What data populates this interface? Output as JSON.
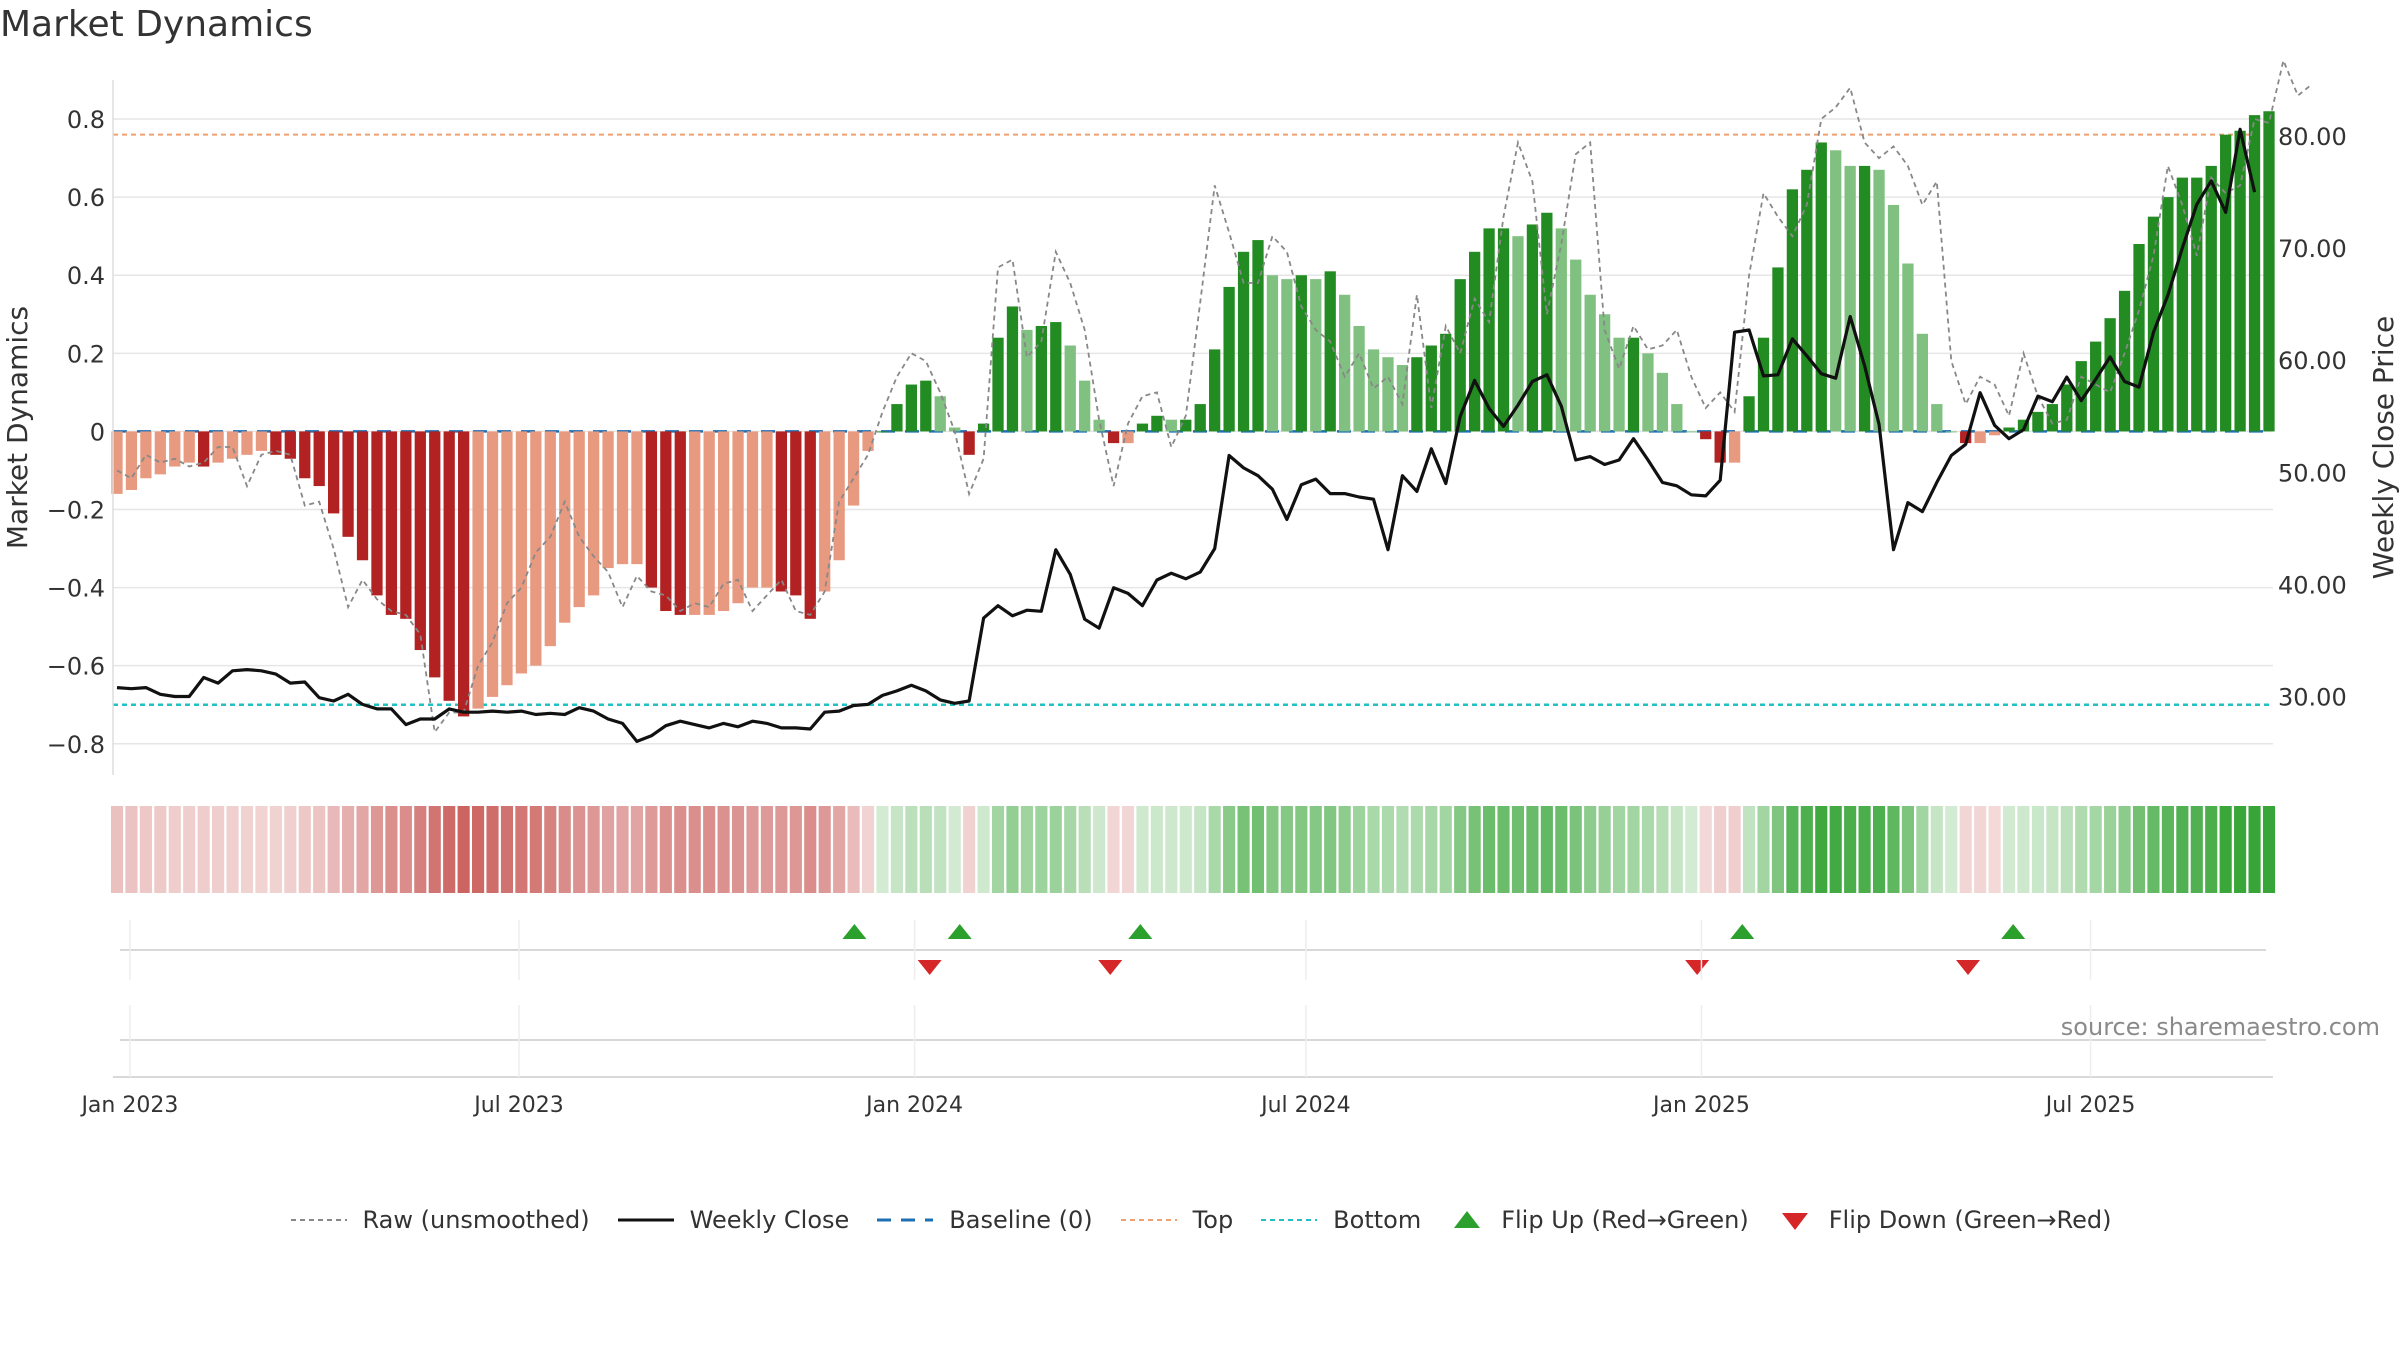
{
  "title": "Market Dynamics",
  "source": "source: sharemaestro.com",
  "colors": {
    "pos_strong": "#228b22",
    "pos_weak": "#80c080",
    "neg_strong": "#b22222",
    "neg_weak": "#e89a80",
    "close": "#111111",
    "raw": "#888888",
    "baseline": "#1f6fb4",
    "top": "#f0a070",
    "bottom": "#22c0c0",
    "flip_up": "#2ca02c",
    "flip_down": "#d62728"
  },
  "chart_data": {
    "type": "bar",
    "ylabel": "Market Dynamics",
    "y2label": "Weekly Close Price",
    "ylim": [
      -0.88,
      0.9
    ],
    "y2lim": [
      23.0,
      85.0
    ],
    "yticks": [
      "0.8",
      "0.6",
      "0.4",
      "0.2",
      "0",
      "−0.2",
      "−0.4",
      "−0.6",
      "−0.8"
    ],
    "y2ticks": [
      "80.00",
      "70.00",
      "60.00",
      "50.00",
      "40.00",
      "30.00"
    ],
    "x_start": "2022-12-26",
    "x_end": "2025-09-22",
    "xticks": [
      "Jan 2023",
      "Jul 2023",
      "Jan 2024",
      "Jul 2024",
      "Jan 2025",
      "Jul 2025"
    ],
    "top_level": 0.76,
    "bottom_level": -0.7,
    "baseline_level": 0,
    "series": [
      {
        "name": "Market Dynamics",
        "values": [
          -0.16,
          -0.15,
          -0.12,
          -0.11,
          -0.09,
          -0.08,
          -0.09,
          -0.08,
          -0.07,
          -0.06,
          -0.05,
          -0.06,
          -0.07,
          -0.12,
          -0.14,
          -0.21,
          -0.27,
          -0.33,
          -0.42,
          -0.47,
          -0.48,
          -0.56,
          -0.63,
          -0.69,
          -0.73,
          -0.71,
          -0.68,
          -0.65,
          -0.62,
          -0.6,
          -0.55,
          -0.49,
          -0.45,
          -0.42,
          -0.35,
          -0.34,
          -0.34,
          -0.4,
          -0.46,
          -0.47,
          -0.47,
          -0.47,
          -0.46,
          -0.44,
          -0.4,
          -0.4,
          -0.41,
          -0.42,
          -0.48,
          -0.41,
          -0.33,
          -0.19,
          -0.05,
          0.0,
          0.07,
          0.12,
          0.13,
          0.09,
          0.01,
          -0.06,
          0.02,
          0.24,
          0.32,
          0.26,
          0.27,
          0.28,
          0.22,
          0.13,
          0.03,
          -0.03,
          -0.03,
          0.02,
          0.04,
          0.03,
          0.03,
          0.07,
          0.21,
          0.37,
          0.46,
          0.49,
          0.4,
          0.39,
          0.4,
          0.39,
          0.41,
          0.35,
          0.27,
          0.21,
          0.19,
          0.17,
          0.19,
          0.22,
          0.25,
          0.39,
          0.46,
          0.52,
          0.52,
          0.5,
          0.53,
          0.56,
          0.52,
          0.44,
          0.35,
          0.3,
          0.24,
          0.24,
          0.2,
          0.15,
          0.07,
          0.0,
          -0.02,
          -0.08,
          -0.08,
          0.09,
          0.24,
          0.42,
          0.62,
          0.67,
          0.74,
          0.72,
          0.68,
          0.68,
          0.67,
          0.58,
          0.43,
          0.25,
          0.07,
          0.0,
          -0.03,
          -0.03,
          -0.01,
          0.01,
          0.03,
          0.05,
          0.07,
          0.12,
          0.18,
          0.23,
          0.29,
          0.36,
          0.48,
          0.55,
          0.6,
          0.65,
          0.65,
          0.68,
          0.76,
          0.77,
          0.81,
          0.82
        ]
      },
      {
        "name": "Raw (unsmoothed)",
        "values": [
          -0.1,
          -0.12,
          -0.06,
          -0.08,
          -0.07,
          -0.09,
          -0.08,
          -0.04,
          -0.04,
          -0.14,
          -0.06,
          -0.05,
          -0.06,
          -0.19,
          -0.18,
          -0.3,
          -0.45,
          -0.38,
          -0.43,
          -0.46,
          -0.47,
          -0.52,
          -0.77,
          -0.72,
          -0.72,
          -0.6,
          -0.54,
          -0.44,
          -0.4,
          -0.31,
          -0.27,
          -0.18,
          -0.27,
          -0.32,
          -0.36,
          -0.45,
          -0.37,
          -0.41,
          -0.42,
          -0.46,
          -0.44,
          -0.45,
          -0.39,
          -0.38,
          -0.46,
          -0.42,
          -0.38,
          -0.46,
          -0.47,
          -0.41,
          -0.18,
          -0.12,
          -0.06,
          0.05,
          0.14,
          0.2,
          0.18,
          0.1,
          0.0,
          -0.16,
          -0.07,
          0.42,
          0.44,
          0.19,
          0.23,
          0.46,
          0.38,
          0.26,
          0.03,
          -0.14,
          0.02,
          0.09,
          0.1,
          -0.04,
          0.04,
          0.33,
          0.63,
          0.51,
          0.38,
          0.38,
          0.5,
          0.46,
          0.32,
          0.26,
          0.23,
          0.14,
          0.2,
          0.11,
          0.14,
          0.07,
          0.35,
          0.06,
          0.27,
          0.2,
          0.34,
          0.28,
          0.55,
          0.74,
          0.64,
          0.3,
          0.48,
          0.71,
          0.74,
          0.26,
          0.16,
          0.27,
          0.21,
          0.22,
          0.26,
          0.14,
          0.06,
          0.1,
          0.05,
          0.4,
          0.61,
          0.55,
          0.5,
          0.58,
          0.8,
          0.83,
          0.88,
          0.74,
          0.7,
          0.73,
          0.68,
          0.58,
          0.64,
          0.18,
          0.07,
          0.14,
          0.12,
          0.04,
          0.2,
          0.09,
          0.02,
          0.03,
          0.14,
          0.12,
          0.1,
          0.2,
          0.31,
          0.45,
          0.68,
          0.58,
          0.45,
          0.65,
          0.61,
          0.63,
          0.8,
          0.79,
          0.95,
          0.86,
          0.89
        ]
      },
      {
        "name": "Weekly Close",
        "values": [
          30.8,
          30.7,
          30.8,
          30.2,
          30.0,
          30.0,
          31.7,
          31.2,
          32.3,
          32.4,
          32.3,
          32.0,
          31.2,
          31.3,
          29.9,
          29.6,
          30.2,
          29.3,
          28.9,
          28.9,
          27.5,
          28.0,
          28.0,
          28.9,
          28.6,
          28.6,
          28.7,
          28.6,
          28.7,
          28.4,
          28.5,
          28.4,
          29.0,
          28.7,
          28.0,
          27.6,
          26.0,
          26.5,
          27.4,
          27.8,
          27.5,
          27.2,
          27.6,
          27.3,
          27.8,
          27.6,
          27.2,
          27.2,
          27.1,
          28.6,
          28.7,
          29.2,
          29.3,
          30.1,
          30.5,
          31.0,
          30.5,
          29.7,
          29.4,
          29.6,
          37.0,
          38.1,
          37.2,
          37.7,
          37.6,
          43.1,
          40.9,
          36.9,
          36.1,
          39.7,
          39.2,
          38.1,
          40.4,
          41.0,
          40.5,
          41.1,
          43.2,
          51.5,
          50.4,
          49.7,
          48.5,
          45.8,
          48.9,
          49.4,
          48.1,
          48.1,
          47.8,
          47.6,
          43.1,
          49.7,
          48.3,
          52.1,
          49.0,
          55.0,
          58.2,
          55.7,
          54.1,
          56.0,
          58.1,
          58.7,
          55.9,
          51.1,
          51.4,
          50.7,
          51.1,
          53.0,
          51.1,
          49.1,
          48.8,
          48.0,
          47.9,
          49.3,
          62.5,
          62.7,
          58.6,
          58.7,
          61.9,
          60.4,
          58.8,
          58.4,
          63.9,
          59.5,
          54.3,
          43.1,
          47.3,
          46.5,
          49.1,
          51.5,
          52.5,
          57.1,
          54.2,
          53.0,
          53.8,
          56.8,
          56.3,
          58.5,
          56.4,
          58.3,
          60.3,
          58.1,
          57.6,
          62.5,
          65.8,
          70.0,
          73.9,
          76.0,
          73.2,
          80.6,
          75.0
        ]
      }
    ],
    "flip_up": [
      "2023-12-04",
      "2024-01-22",
      "2024-04-15",
      "2025-01-20",
      "2025-05-26"
    ],
    "flip_down": [
      "2024-01-08",
      "2024-04-01",
      "2024-12-30",
      "2025-05-05"
    ],
    "legend": [
      "Raw (unsmoothed)",
      "Weekly Close",
      "Baseline (0)",
      "Top",
      "Bottom",
      "Flip Up (Red→Green)",
      "Flip Down (Green→Red)"
    ]
  }
}
